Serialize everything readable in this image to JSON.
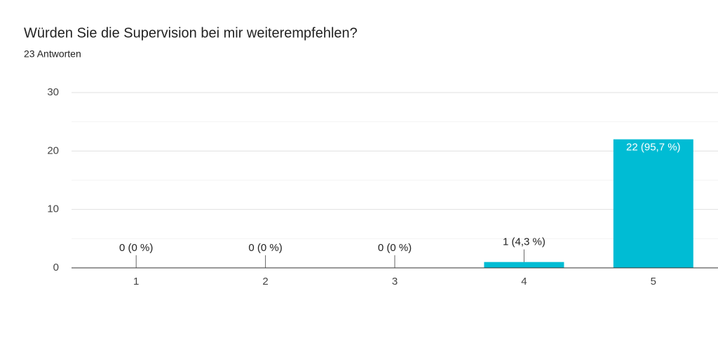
{
  "chart_data": {
    "type": "bar",
    "title": "Würden Sie die Supervision bei mir weiterempfehlen?",
    "subtitle": "23 Antworten",
    "categories": [
      "1",
      "2",
      "3",
      "4",
      "5"
    ],
    "values": [
      0,
      0,
      0,
      1,
      22
    ],
    "value_labels": [
      "0 (0 %)",
      "0 (0 %)",
      "0 (0 %)",
      "1 (4,3 %)",
      "22 (95,7 %)"
    ],
    "color": "#00bcd4",
    "ylim": [
      0,
      30
    ],
    "yticks": [
      0,
      10,
      20,
      30
    ],
    "yminor": [
      5,
      15,
      25
    ],
    "grid": true
  }
}
